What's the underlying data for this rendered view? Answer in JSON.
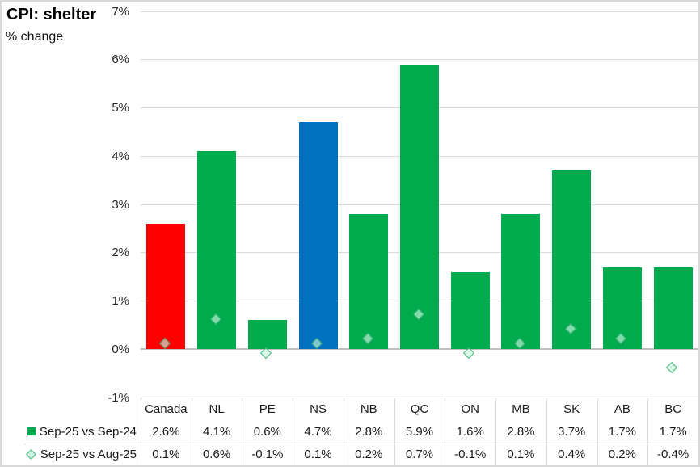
{
  "title": "CPI: shelter",
  "subtitle": "% change",
  "chart_data": {
    "type": "bar",
    "title": "CPI: shelter",
    "subtitle": "% change",
    "categories": [
      "Canada",
      "NL",
      "PE",
      "NS",
      "NB",
      "QC",
      "ON",
      "MB",
      "SK",
      "AB",
      "BC"
    ],
    "series": [
      {
        "name": "Sep-25 vs Sep-24",
        "render": "bar",
        "values": [
          2.6,
          4.1,
          0.6,
          4.7,
          2.8,
          5.9,
          1.6,
          2.8,
          3.7,
          1.7,
          1.7
        ],
        "default_color": "#00AB4E",
        "color_overrides": {
          "Canada": "#FF0000",
          "NS": "#0070C0"
        }
      },
      {
        "name": "Sep-25 vs Aug-25",
        "render": "diamond-marker",
        "values": [
          0.1,
          0.6,
          -0.1,
          0.1,
          0.2,
          0.7,
          -0.1,
          0.1,
          0.4,
          0.2,
          -0.4
        ],
        "marker_fill": "#C6F5DB",
        "marker_border": "#16A35A"
      }
    ],
    "ylim": [
      -1,
      7
    ],
    "ytick_step": 1,
    "ytick_labels": [
      "7%",
      "6%",
      "5%",
      "4%",
      "3%",
      "2%",
      "1%",
      "0%",
      "-1%"
    ],
    "value_suffix": "%",
    "grid": true,
    "gridline_color": "#D9D9D9",
    "zero_axis_color": "#BFBFBF",
    "legend_position": "bottom-left",
    "data_table_shown": true,
    "table_rows": [
      {
        "legend": "Sep-25 vs Sep-24",
        "cells": [
          "2.6%",
          "4.1%",
          "0.6%",
          "4.7%",
          "2.8%",
          "5.9%",
          "1.6%",
          "2.8%",
          "3.7%",
          "1.7%",
          "1.7%"
        ]
      },
      {
        "legend": "Sep-25 vs Aug-25",
        "cells": [
          "0.1%",
          "0.6%",
          "-0.1%",
          "0.1%",
          "0.2%",
          "0.7%",
          "-0.1%",
          "0.1%",
          "0.4%",
          "0.2%",
          "-0.4%"
        ]
      }
    ]
  }
}
